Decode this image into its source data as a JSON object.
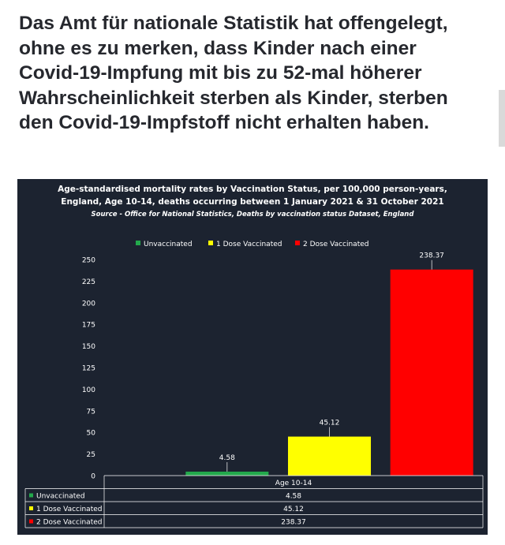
{
  "headline": "Das Amt für nationale Statistik hat offengelegt, ohne es zu merken, dass Kinder nach einer Covid-19-Impfung mit bis zu 52-mal höherer Wahrscheinlichkeit sterben als Kinder, sterben den Covid-19-Impfstoff nicht erhalten haben.",
  "colors": {
    "background": "#1c2330",
    "unvaccinated": "#23a94c",
    "dose1": "#ffff00",
    "dose2": "#ff0000",
    "grid": "#ffffff",
    "text": "#ffffff"
  },
  "chart_data": {
    "type": "bar",
    "title_lines": [
      "Age-standardised mortality rates by Vaccination Status, per 100,000 person-years,",
      "England, Age 10-14, deaths occurring between 1 January 2021 & 31 October 2021"
    ],
    "source": "Source - Office for National Statistics, Deaths by vaccination status Dataset, England",
    "categories": [
      "Age 10-14"
    ],
    "series": [
      {
        "name": "Unvaccinated",
        "values": [
          4.58
        ],
        "labels": [
          "4.58"
        ],
        "color": "#23a94c"
      },
      {
        "name": "1 Dose Vaccinated",
        "values": [
          45.12
        ],
        "labels": [
          "45.12"
        ],
        "color": "#ffff00"
      },
      {
        "name": "2 Dose Vaccinated",
        "values": [
          238.37
        ],
        "labels": [
          "238.37"
        ],
        "color": "#ff0000"
      }
    ],
    "yticks": [
      "0",
      "25",
      "50",
      "75",
      "100",
      "125",
      "150",
      "175",
      "200",
      "225",
      "250"
    ],
    "ylim": [
      0,
      250
    ],
    "legend": "top",
    "grid": false,
    "data_table": true
  }
}
